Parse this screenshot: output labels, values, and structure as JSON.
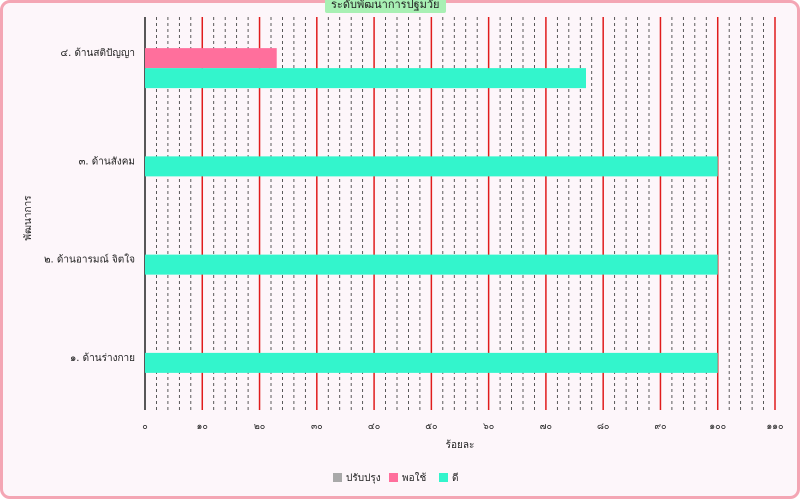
{
  "chart_data": {
    "type": "bar",
    "orientation": "horizontal",
    "title": "ระดับพัฒนาการปฐมวัย",
    "xlabel": "ร้อยละ",
    "ylabel": "พัฒนาการ",
    "xlim": [
      0,
      110
    ],
    "x_ticks": [
      "๐",
      "๑๐",
      "๒๐",
      "๓๐",
      "๔๐",
      "๕๐",
      "๖๐",
      "๗๐",
      "๘๐",
      "๙๐",
      "๑๐๐",
      "๑๑๐"
    ],
    "categories": [
      "๔. ด้านสติปัญญา",
      "๓. ด้านสังคม",
      "๒. ด้านอารมณ์ จิตใจ",
      "๑. ด้านร่างกาย"
    ],
    "series": [
      {
        "name": "ปรับปรุง",
        "color": "#a9a9a9",
        "values": [
          0,
          0,
          0,
          0
        ]
      },
      {
        "name": "พอใช้",
        "color": "#ff6f9c",
        "values": [
          23,
          0,
          0,
          0
        ]
      },
      {
        "name": "ดี",
        "color": "#33f5cc",
        "values": [
          77,
          100,
          100,
          100
        ]
      }
    ],
    "grid": true,
    "legend_position": "bottom",
    "major_grid_color": "#e01c1c"
  }
}
